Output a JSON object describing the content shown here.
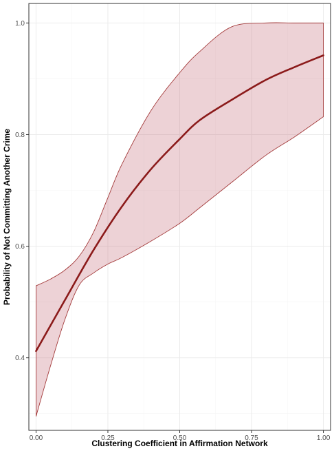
{
  "chart_data": {
    "type": "line",
    "title": "",
    "xlabel": "Clustering Coefficient in Affirmation Network",
    "ylabel": "Probability of Not Committing Another Crime",
    "xlim": [
      -0.025,
      1.025
    ],
    "ylim": [
      0.27,
      1.035
    ],
    "x_ticks": [
      0.0,
      0.25,
      0.5,
      0.75,
      1.0
    ],
    "x_tick_labels": [
      "0.00",
      "0.25",
      "0.50",
      "0.75",
      "1.00"
    ],
    "y_ticks": [
      0.4,
      0.6,
      0.8,
      1.0
    ],
    "y_tick_labels": [
      "0.4",
      "0.6",
      "0.8",
      "1.0"
    ],
    "grid": true,
    "colors": {
      "line": "#8b1a1a",
      "band_fill": "#c8747f",
      "band_stroke": "#a33a3a",
      "grid_major": "#ebebeb",
      "grid_minor": "#f5f5f5",
      "panel_border": "#333333"
    },
    "series": [
      {
        "x": [
          0.0,
          0.1,
          0.2,
          0.3,
          0.4,
          0.5,
          0.57,
          0.68,
          0.8,
          0.9,
          1.0
        ],
        "values": [
          0.412,
          0.503,
          0.593,
          0.672,
          0.738,
          0.792,
          0.826,
          0.862,
          0.898,
          0.921,
          0.942
        ]
      }
    ],
    "ci_band": {
      "x": [
        0.0,
        0.05,
        0.1,
        0.15,
        0.2,
        0.25,
        0.3,
        0.4,
        0.5,
        0.57,
        0.68,
        0.8,
        0.9,
        1.0
      ],
      "upper": [
        0.529,
        0.541,
        0.557,
        0.582,
        0.625,
        0.687,
        0.748,
        0.843,
        0.911,
        0.949,
        0.993,
        1.0,
        1.0,
        1.0
      ],
      "lower": [
        0.295,
        0.385,
        0.468,
        0.53,
        0.552,
        0.568,
        0.58,
        0.609,
        0.641,
        0.669,
        0.714,
        0.763,
        0.796,
        0.832
      ]
    }
  }
}
